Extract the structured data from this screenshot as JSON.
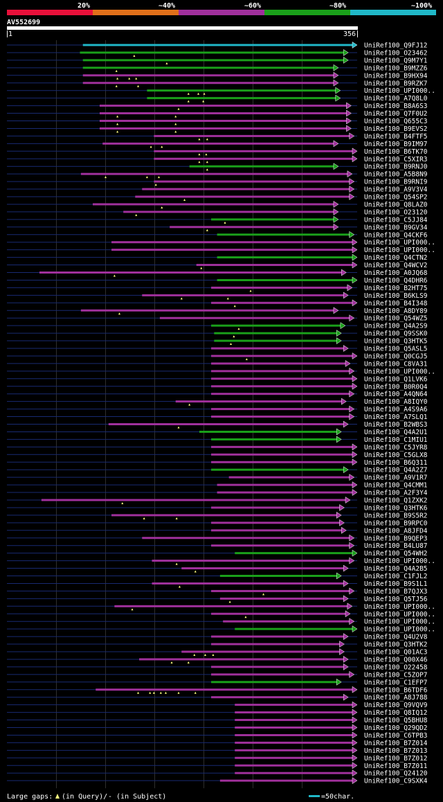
{
  "query": {
    "id": "AV552699",
    "start": "1",
    "end": "356",
    "length": 356
  },
  "scale": {
    "labels": [
      "20%",
      "~40%",
      "~60%",
      "~80%",
      "~100%"
    ],
    "bands": [
      {
        "name": "20%",
        "color": "#e8103a"
      },
      {
        "name": "~40%",
        "color": "#e0701a"
      },
      {
        "name": "~60%",
        "color": "#a0309c"
      },
      {
        "name": "~80%",
        "color": "#1aa01a"
      },
      {
        "name": "~100%",
        "color": "#20b8c8"
      }
    ]
  },
  "colors": {
    "purple": "#a0309c",
    "green": "#1aa01a",
    "cyan": "#20b8c8",
    "navy": "#182a72",
    "grid": "#2e2e2e"
  },
  "legend": {
    "text": "Large gaps: ",
    "query_part": "(in Query)/",
    "subject_part": "- (in Subject)",
    "scale_label": "=50char."
  },
  "hits": [
    {
      "label": "UniRef100_Q9FJ12",
      "start": 78,
      "end": 356,
      "color": "cyan",
      "marks": []
    },
    {
      "label": "UniRef100_O23462",
      "start": 75,
      "end": 347,
      "color": "green",
      "marks": [
        130
      ]
    },
    {
      "label": "UniRef100_Q9M7Y1",
      "start": 78,
      "end": 347,
      "color": "green",
      "marks": [
        163
      ]
    },
    {
      "label": "UniRef100_B9MZZ6",
      "start": 78,
      "end": 337,
      "color": "green",
      "marks": [
        112
      ]
    },
    {
      "label": "UniRef100_B9HX94",
      "start": 78,
      "end": 337,
      "color": "purple",
      "marks": [
        113,
        125,
        132
      ]
    },
    {
      "label": "UniRef100_B9RZK7",
      "start": 78,
      "end": 337,
      "color": "purple",
      "marks": [
        112,
        134
      ]
    },
    {
      "label": "UniRef100_UPI000..",
      "start": 143,
      "end": 339,
      "color": "green",
      "marks": [
        185,
        195,
        201
      ]
    },
    {
      "label": "UniRef100_A7Q8L0",
      "start": 143,
      "end": 339,
      "color": "green",
      "marks": [
        185,
        200
      ]
    },
    {
      "label": "UniRef100_B8A6S3",
      "start": 95,
      "end": 350,
      "color": "purple",
      "marks": [
        175
      ]
    },
    {
      "label": "UniRef100_Q7F0U2",
      "start": 95,
      "end": 350,
      "color": "purple",
      "marks": [
        113,
        172
      ]
    },
    {
      "label": "UniRef100_Q655C3",
      "start": 95,
      "end": 350,
      "color": "purple",
      "marks": [
        113,
        172
      ]
    },
    {
      "label": "UniRef100_B9EVS2",
      "start": 95,
      "end": 350,
      "color": "purple",
      "marks": [
        113,
        172
      ]
    },
    {
      "label": "UniRef100_B4FTF5",
      "start": 150,
      "end": 353,
      "color": "purple",
      "marks": [
        196,
        204
      ]
    },
    {
      "label": "UniRef100_B9IM97",
      "start": 98,
      "end": 337,
      "color": "purple",
      "marks": [
        147,
        158
      ]
    },
    {
      "label": "UniRef100_B6TK70",
      "start": 150,
      "end": 356,
      "color": "purple",
      "marks": [
        196,
        203
      ]
    },
    {
      "label": "UniRef100_C5XIR3",
      "start": 150,
      "end": 356,
      "color": "purple",
      "marks": [
        196,
        204
      ]
    },
    {
      "label": "UniRef100_B9RNJ0",
      "start": 186,
      "end": 337,
      "color": "green",
      "marks": [
        204
      ]
    },
    {
      "label": "UniRef100_A5B8N9",
      "start": 76,
      "end": 351,
      "color": "purple",
      "marks": [
        101,
        143,
        155
      ]
    },
    {
      "label": "UniRef100_B9RNI9",
      "start": 150,
      "end": 353,
      "color": "purple",
      "marks": [
        152
      ]
    },
    {
      "label": "UniRef100_A9V3V4",
      "start": 138,
      "end": 353,
      "color": "purple",
      "marks": []
    },
    {
      "label": "UniRef100_Q54SP2",
      "start": 131,
      "end": 353,
      "color": "purple",
      "marks": [
        181
      ]
    },
    {
      "label": "UniRef100_Q8LAZ0",
      "start": 88,
      "end": 337,
      "color": "purple",
      "marks": [
        158
      ]
    },
    {
      "label": "UniRef100_O23120",
      "start": 119,
      "end": 337,
      "color": "purple",
      "marks": [
        132
      ]
    },
    {
      "label": "UniRef100_C5JJ84",
      "start": 208,
      "end": 337,
      "color": "green",
      "marks": [
        222
      ]
    },
    {
      "label": "UniRef100_B9GV34",
      "start": 166,
      "end": 337,
      "color": "purple",
      "marks": [
        204
      ]
    },
    {
      "label": "UniRef100_Q4CKF6",
      "start": 214,
      "end": 353,
      "color": "green",
      "marks": []
    },
    {
      "label": "UniRef100_UPI000..",
      "start": 107,
      "end": 356,
      "color": "purple",
      "marks": []
    },
    {
      "label": "UniRef100_UPI000..",
      "start": 107,
      "end": 356,
      "color": "purple",
      "marks": []
    },
    {
      "label": "UniRef100_Q4CTN2",
      "start": 214,
      "end": 356,
      "color": "green",
      "marks": []
    },
    {
      "label": "UniRef100_Q4WCV2",
      "start": 193,
      "end": 356,
      "color": "purple",
      "marks": [
        198
      ]
    },
    {
      "label": "UniRef100_A0JQ68",
      "start": 34,
      "end": 345,
      "color": "purple",
      "marks": [
        110
      ]
    },
    {
      "label": "UniRef100_Q4DHR6",
      "start": 214,
      "end": 356,
      "color": "green",
      "marks": []
    },
    {
      "label": "UniRef100_B2HT75",
      "start": 208,
      "end": 351,
      "color": "purple",
      "marks": [
        248
      ]
    },
    {
      "label": "UniRef100_B6KLS9",
      "start": 138,
      "end": 347,
      "color": "purple",
      "marks": [
        178,
        225
      ]
    },
    {
      "label": "UniRef100_B4I348",
      "start": 208,
      "end": 356,
      "color": "purple",
      "marks": [
        232
      ]
    },
    {
      "label": "UniRef100_A8DY89",
      "start": 76,
      "end": 337,
      "color": "purple",
      "marks": [
        115
      ]
    },
    {
      "label": "UniRef100_Q54WZ5",
      "start": 156,
      "end": 353,
      "color": "purple",
      "marks": []
    },
    {
      "label": "UniRef100_Q4A2S9",
      "start": 208,
      "end": 344,
      "color": "green",
      "marks": [
        236
      ]
    },
    {
      "label": "UniRef100_Q9SSK0",
      "start": 211,
      "end": 340,
      "color": "green",
      "marks": [
        231
      ]
    },
    {
      "label": "UniRef100_Q3HTK5",
      "start": 211,
      "end": 340,
      "color": "green",
      "marks": [
        228
      ]
    },
    {
      "label": "UniRef100_Q5ASL5",
      "start": 208,
      "end": 347,
      "color": "purple",
      "marks": []
    },
    {
      "label": "UniRef100_Q0CGJ5",
      "start": 208,
      "end": 356,
      "color": "purple",
      "marks": [
        244
      ]
    },
    {
      "label": "UniRef100_C8VA31",
      "start": 208,
      "end": 349,
      "color": "purple",
      "marks": []
    },
    {
      "label": "UniRef100_UPI000..",
      "start": 208,
      "end": 353,
      "color": "purple",
      "marks": []
    },
    {
      "label": "UniRef100_Q1LVK6",
      "start": 208,
      "end": 356,
      "color": "purple",
      "marks": []
    },
    {
      "label": "UniRef100_B0R0Q4",
      "start": 208,
      "end": 356,
      "color": "purple",
      "marks": []
    },
    {
      "label": "UniRef100_A4QN64",
      "start": 208,
      "end": 353,
      "color": "purple",
      "marks": []
    },
    {
      "label": "UniRef100_A8IQY0",
      "start": 172,
      "end": 345,
      "color": "purple",
      "marks": [
        186
      ]
    },
    {
      "label": "UniRef100_A4S9A6",
      "start": 208,
      "end": 353,
      "color": "purple",
      "marks": []
    },
    {
      "label": "UniRef100_A7SLQ1",
      "start": 208,
      "end": 353,
      "color": "purple",
      "marks": []
    },
    {
      "label": "UniRef100_B2WBS3",
      "start": 104,
      "end": 347,
      "color": "purple",
      "marks": [
        175
      ]
    },
    {
      "label": "UniRef100_Q4A2U1",
      "start": 196,
      "end": 340,
      "color": "green",
      "marks": []
    },
    {
      "label": "UniRef100_C1MIU1",
      "start": 208,
      "end": 340,
      "color": "green",
      "marks": []
    },
    {
      "label": "UniRef100_C5JYR8",
      "start": 208,
      "end": 356,
      "color": "purple",
      "marks": []
    },
    {
      "label": "UniRef100_C5GLX8",
      "start": 208,
      "end": 356,
      "color": "purple",
      "marks": []
    },
    {
      "label": "UniRef100_B6Q311",
      "start": 208,
      "end": 356,
      "color": "purple",
      "marks": []
    },
    {
      "label": "UniRef100_Q4A2Z7",
      "start": 208,
      "end": 347,
      "color": "green",
      "marks": []
    },
    {
      "label": "UniRef100_A9V1R7",
      "start": 226,
      "end": 353,
      "color": "purple",
      "marks": []
    },
    {
      "label": "UniRef100_Q4CMM1",
      "start": 214,
      "end": 356,
      "color": "purple",
      "marks": []
    },
    {
      "label": "UniRef100_A2F3Y4",
      "start": 214,
      "end": 356,
      "color": "purple",
      "marks": []
    },
    {
      "label": "UniRef100_Q1ZXK2",
      "start": 36,
      "end": 349,
      "color": "purple",
      "marks": [
        118
      ]
    },
    {
      "label": "UniRef100_Q3HTK6",
      "start": 208,
      "end": 343,
      "color": "purple",
      "marks": []
    },
    {
      "label": "UniRef100_B9S5R2",
      "start": 107,
      "end": 340,
      "color": "purple",
      "marks": [
        140,
        173
      ]
    },
    {
      "label": "UniRef100_B9RPC0",
      "start": 208,
      "end": 343,
      "color": "purple",
      "marks": []
    },
    {
      "label": "UniRef100_A8JFD4",
      "start": 208,
      "end": 345,
      "color": "purple",
      "marks": []
    },
    {
      "label": "UniRef100_B9QEP3",
      "start": 138,
      "end": 353,
      "color": "purple",
      "marks": []
    },
    {
      "label": "UniRef100_B4LU87",
      "start": 208,
      "end": 353,
      "color": "purple",
      "marks": []
    },
    {
      "label": "UniRef100_Q54WH2",
      "start": 232,
      "end": 356,
      "color": "green",
      "marks": []
    },
    {
      "label": "UniRef100_UPI000..",
      "start": 148,
      "end": 353,
      "color": "purple",
      "marks": [
        173
      ]
    },
    {
      "label": "UniRef100_Q4A2B5",
      "start": 178,
      "end": 347,
      "color": "purple",
      "marks": [
        192
      ]
    },
    {
      "label": "UniRef100_C1FJL2",
      "start": 217,
      "end": 340,
      "color": "green",
      "marks": []
    },
    {
      "label": "UniRef100_B9S1L1",
      "start": 148,
      "end": 347,
      "color": "purple",
      "marks": [
        176
      ]
    },
    {
      "label": "UniRef100_B7QJX3",
      "start": 208,
      "end": 353,
      "color": "purple",
      "marks": [
        261
      ]
    },
    {
      "label": "UniRef100_Q5TJ56",
      "start": 217,
      "end": 347,
      "color": "purple",
      "marks": [
        227
      ]
    },
    {
      "label": "UniRef100_UPI000..",
      "start": 110,
      "end": 351,
      "color": "purple",
      "marks": [
        128
      ]
    },
    {
      "label": "UniRef100_UPI000..",
      "start": 208,
      "end": 349,
      "color": "purple",
      "marks": [
        243
      ]
    },
    {
      "label": "UniRef100_UPI000..",
      "start": 220,
      "end": 353,
      "color": "purple",
      "marks": []
    },
    {
      "label": "UniRef100_UPI000..",
      "start": 232,
      "end": 356,
      "color": "green",
      "marks": []
    },
    {
      "label": "UniRef100_Q4U2V8",
      "start": 208,
      "end": 347,
      "color": "purple",
      "marks": []
    },
    {
      "label": "UniRef100_Q3HTK2",
      "start": 208,
      "end": 343,
      "color": "purple",
      "marks": []
    },
    {
      "label": "UniRef100_Q01AC3",
      "start": 178,
      "end": 343,
      "color": "purple",
      "marks": [
        191,
        202,
        210
      ]
    },
    {
      "label": "UniRef100_Q00X46",
      "start": 135,
      "end": 347,
      "color": "purple",
      "marks": [
        168,
        185
      ]
    },
    {
      "label": "UniRef100_O22458",
      "start": 208,
      "end": 347,
      "color": "purple",
      "marks": []
    },
    {
      "label": "UniRef100_C5ZOP7",
      "start": 208,
      "end": 353,
      "color": "purple",
      "marks": []
    },
    {
      "label": "UniRef100_C1EFP7",
      "start": 208,
      "end": 340,
      "color": "green",
      "marks": []
    },
    {
      "label": "UniRef100_B6TDF6",
      "start": 91,
      "end": 356,
      "color": "purple",
      "marks": [
        134,
        146,
        150,
        157,
        162,
        175,
        192
      ]
    },
    {
      "label": "UniRef100_A8J788",
      "start": 208,
      "end": 347,
      "color": "purple",
      "marks": []
    },
    {
      "label": "UniRef100_Q9VQV9",
      "start": 232,
      "end": 356,
      "color": "purple",
      "marks": []
    },
    {
      "label": "UniRef100_Q8IQ12",
      "start": 232,
      "end": 356,
      "color": "purple",
      "marks": []
    },
    {
      "label": "UniRef100_Q5BHU8",
      "start": 232,
      "end": 356,
      "color": "purple",
      "marks": []
    },
    {
      "label": "UniRef100_Q29QD2",
      "start": 232,
      "end": 356,
      "color": "purple",
      "marks": []
    },
    {
      "label": "UniRef100_C6TPB3",
      "start": 232,
      "end": 356,
      "color": "purple",
      "marks": []
    },
    {
      "label": "UniRef100_B7Z014",
      "start": 232,
      "end": 356,
      "color": "purple",
      "marks": []
    },
    {
      "label": "UniRef100_B7Z013",
      "start": 232,
      "end": 356,
      "color": "purple",
      "marks": []
    },
    {
      "label": "UniRef100_B7Z012",
      "start": 232,
      "end": 356,
      "color": "purple",
      "marks": []
    },
    {
      "label": "UniRef100_B7Z011",
      "start": 232,
      "end": 356,
      "color": "purple",
      "marks": []
    },
    {
      "label": "UniRef100_Q24120",
      "start": 232,
      "end": 356,
      "color": "purple",
      "marks": []
    },
    {
      "label": "UniRef100_C9SXK4",
      "start": 217,
      "end": 356,
      "color": "purple",
      "marks": []
    }
  ]
}
